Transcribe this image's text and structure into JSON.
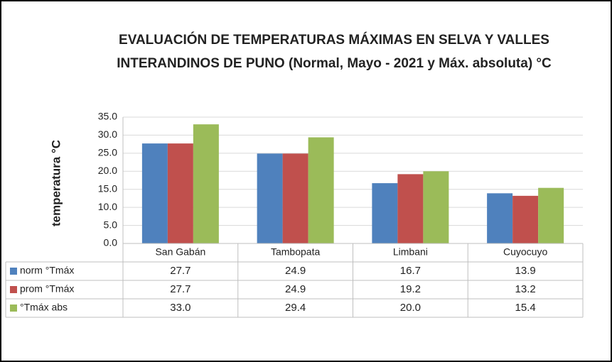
{
  "chart_data": {
    "type": "bar",
    "title": "EVALUACIÓN DE TEMPERATURAS MÁXIMAS EN SELVA Y VALLES INTERANDINOS DE PUNO (Normal, Mayo - 2021 y Máx. absoluta) °C",
    "y_label": "temperatura °C",
    "categories": [
      "San Gabán",
      "Tambopata",
      "Limbani",
      "Cuyocuyo"
    ],
    "series": [
      {
        "name": "norm °Tmáx",
        "color": "#4f81bd",
        "values": [
          27.7,
          24.9,
          16.7,
          13.9
        ],
        "value_labels": [
          "27.7",
          "24.9",
          "16.7",
          "13.9"
        ]
      },
      {
        "name": "prom °Tmáx",
        "color": "#c0504d",
        "values": [
          27.7,
          24.9,
          19.2,
          13.2
        ],
        "value_labels": [
          "27.7",
          "24.9",
          "19.2",
          "13.2"
        ]
      },
      {
        "name": "°Tmáx abs",
        "color": "#9bbb59",
        "values": [
          33,
          29.4,
          20,
          15.4
        ],
        "value_labels": [
          "33.0",
          "29.4",
          "20.0",
          "15.4"
        ]
      }
    ],
    "ylim": [
      0,
      35
    ],
    "yticks": [
      {
        "value": 0,
        "label": "0.0"
      },
      {
        "value": 5,
        "label": "5.0"
      },
      {
        "value": 10,
        "label": "10.0"
      },
      {
        "value": 15,
        "label": "15.0"
      },
      {
        "value": 20,
        "label": "20.0"
      },
      {
        "value": 25,
        "label": "25.0"
      },
      {
        "value": 30,
        "label": "30.0"
      },
      {
        "value": 35,
        "label": "35.0"
      }
    ],
    "grid": true
  }
}
